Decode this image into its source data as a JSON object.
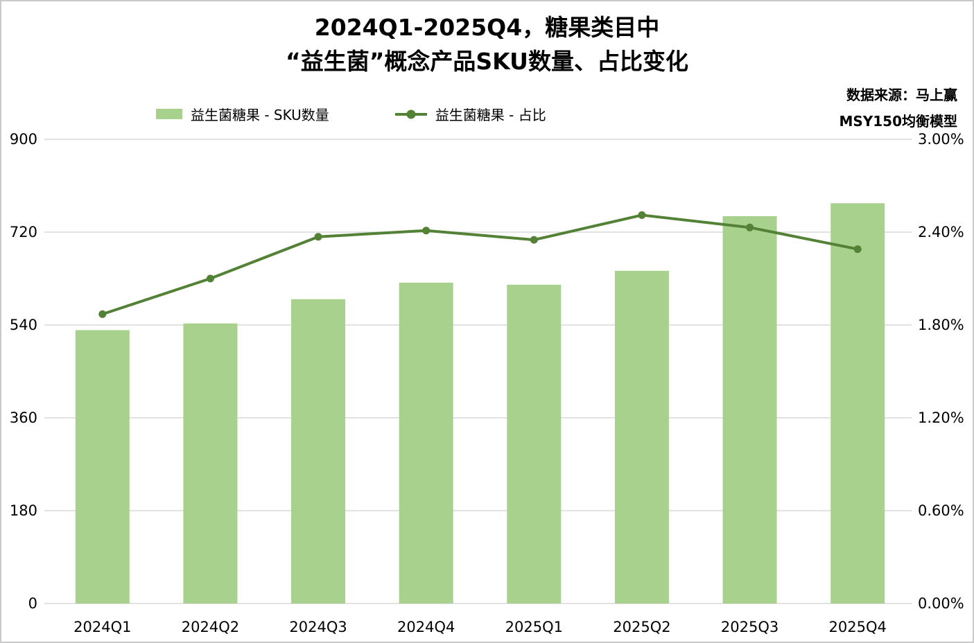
{
  "title": {
    "line1": "2024Q1-2025Q4，糖果类目中",
    "line2": "“益生菌”概念产品SKU数量、占比变化"
  },
  "legend": {
    "bar_label": "益生菌糖果 - SKU数量",
    "line_label": "益生菌糖果 - 占比"
  },
  "source": {
    "line1": "数据来源：马上赢",
    "line2": "MSY150均衡模型"
  },
  "colors": {
    "bar": "#a9d18e",
    "line": "#538135",
    "grid": "#d9d9d9",
    "text": "#000000"
  },
  "chart_data": {
    "type": "bar",
    "subtype": "bar+line combo, dual axis",
    "title": "2024Q1-2025Q4，糖果类目中“益生菌”概念产品SKU数量、占比变化",
    "categories": [
      "2024Q1",
      "2024Q2",
      "2024Q3",
      "2024Q4",
      "2025Q1",
      "2025Q2",
      "2025Q3",
      "2025Q4"
    ],
    "series": [
      {
        "name": "益生菌糖果 - SKU数量",
        "type": "bar",
        "axis": "left",
        "values": [
          530,
          543,
          590,
          622,
          618,
          645,
          751,
          776
        ]
      },
      {
        "name": "益生菌糖果 - 占比",
        "type": "line",
        "axis": "right",
        "unit": "%",
        "values": [
          1.87,
          2.1,
          2.37,
          2.41,
          2.35,
          2.51,
          2.43,
          2.29
        ]
      }
    ],
    "left_axis": {
      "min": 0,
      "max": 900,
      "ticks": [
        0,
        180,
        360,
        540,
        720,
        900
      ]
    },
    "right_axis": {
      "min": 0,
      "max": 3.0,
      "tick_labels": [
        "0.00%",
        "0.60%",
        "1.20%",
        "1.80%",
        "2.40%",
        "3.00%"
      ]
    },
    "grid": true,
    "legend_position": "top"
  }
}
